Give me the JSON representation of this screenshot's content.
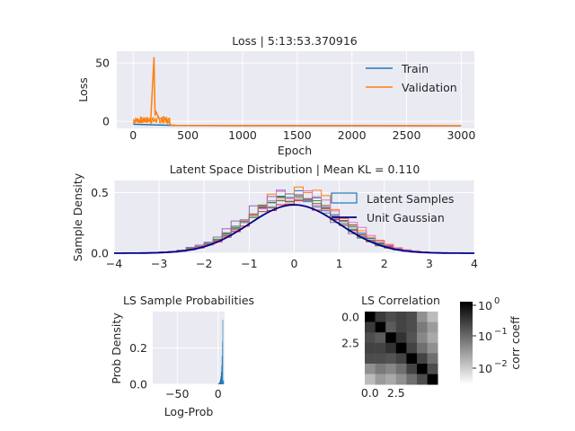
{
  "chart_data": [
    {
      "type": "line",
      "title": "Loss | 5:13:53.370916",
      "xlabel": "Epoch",
      "ylabel": "Loss",
      "xlim": [
        -150,
        3120
      ],
      "ylim": [
        -6,
        60
      ],
      "x_ticks": [
        0,
        500,
        1000,
        1500,
        2000,
        2500,
        3000
      ],
      "y_ticks": [
        0,
        50
      ],
      "legend": "top-right",
      "series": [
        {
          "name": "Train",
          "color": "#1f77b4",
          "x": [
            0,
            100,
            200,
            300,
            400,
            1000,
            2000,
            3000
          ],
          "y": [
            -2.5,
            -2.8,
            -3.0,
            -3.2,
            -3.5,
            -3.6,
            -3.7,
            -3.8
          ]
        },
        {
          "name": "Validation",
          "color": "#ff7f0e",
          "x": [
            0,
            40,
            80,
            120,
            160,
            190,
            200,
            210,
            240,
            280,
            320,
            340,
            400,
            1000,
            2000,
            3000
          ],
          "y": [
            -2,
            2,
            -1,
            3,
            0,
            55,
            5,
            8,
            2,
            4,
            0,
            -3,
            -3.5,
            -3.6,
            -3.7,
            -3.8
          ]
        }
      ]
    },
    {
      "type": "histogram",
      "title": "Latent Space Distribution | Mean KL = 0.110",
      "xlabel": "",
      "ylabel": "Sample Density",
      "xlim": [
        -4,
        4
      ],
      "ylim": [
        0,
        0.6
      ],
      "x_ticks": [
        -4,
        -3,
        -2,
        -1,
        0,
        1,
        2,
        3,
        4
      ],
      "y_ticks": [
        0.0,
        0.5
      ],
      "legend": "top-right",
      "legend_labels": [
        "Latent Samples",
        "Unit Gaussian"
      ],
      "series": [
        {
          "color": "#1f77b4",
          "scale": 1.22,
          "mu": 0.02
        },
        {
          "color": "#ff7f0e",
          "scale": 1.32,
          "mu": 0.08
        },
        {
          "color": "#2ca02c",
          "scale": 1.15,
          "mu": -0.05
        },
        {
          "color": "#d62728",
          "scale": 1.1,
          "mu": 0.0
        },
        {
          "color": "#9467bd",
          "scale": 1.25,
          "mu": -0.1
        },
        {
          "color": "#8c564b",
          "scale": 1.18,
          "mu": 0.05
        },
        {
          "color": "#e377c2",
          "scale": 1.28,
          "mu": 0.12
        },
        {
          "color": "#7f7f7f",
          "scale": 1.12,
          "mu": -0.08
        }
      ],
      "gaussian": {
        "color": "#00008b",
        "mu": 0,
        "sigma": 1
      }
    },
    {
      "type": "histogram",
      "title": "LS Sample Probabilities",
      "xlabel": "Log-Prob",
      "ylabel": "Prob Density",
      "xlim": [
        -80,
        8
      ],
      "ylim": [
        0,
        0.4
      ],
      "x_ticks": [
        -50,
        0
      ],
      "y_ticks": [
        0.0,
        0.2
      ],
      "color": "#1f77b4"
    },
    {
      "type": "heatmap",
      "title": "LS Correlation",
      "x_ticks": [
        "0.0",
        "2.5"
      ],
      "y_ticks": [
        "0.0",
        "2.5"
      ],
      "colorbar_label": "corr coeff",
      "colorbar_ticks": [
        "10",
        "10",
        "10"
      ],
      "colorbar_exps": [
        "0",
        "−1",
        "−2"
      ],
      "matrix": [
        [
          1.0,
          0.3,
          0.2,
          0.25,
          0.2,
          0.05,
          0.02
        ],
        [
          0.3,
          1.0,
          0.15,
          0.25,
          0.2,
          0.08,
          0.04
        ],
        [
          0.2,
          0.15,
          1.0,
          0.35,
          0.18,
          0.06,
          0.03
        ],
        [
          0.25,
          0.25,
          0.35,
          1.0,
          0.25,
          0.1,
          0.05
        ],
        [
          0.2,
          0.2,
          0.18,
          0.25,
          1.0,
          0.25,
          0.1
        ],
        [
          0.05,
          0.08,
          0.06,
          0.1,
          0.25,
          1.0,
          0.2
        ],
        [
          0.02,
          0.04,
          0.03,
          0.05,
          0.1,
          0.2,
          1.0
        ]
      ]
    }
  ]
}
